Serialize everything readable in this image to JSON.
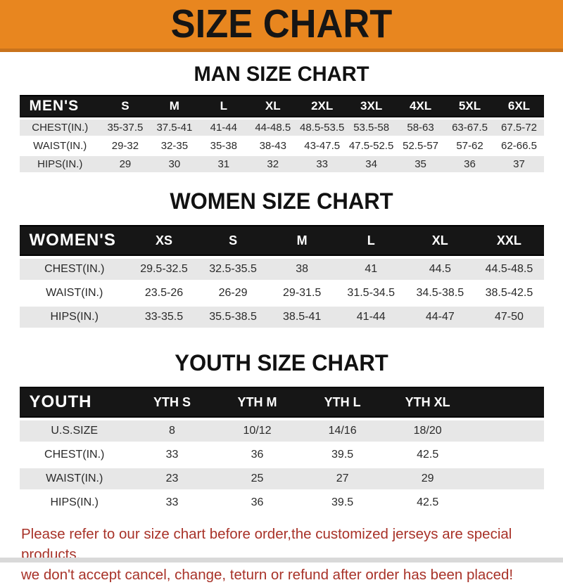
{
  "banner": {
    "title": "SIZE CHART"
  },
  "colors": {
    "banner_orange": "#E8861F",
    "banner_border": "#C9731C",
    "header_bar_black": "#161616",
    "row_stripe_gray": "#E7E7E7",
    "footer_red": "#A83228"
  },
  "sections": [
    {
      "key": "men",
      "heading": "MAN SIZE CHART",
      "table": {
        "label": "MEN'S",
        "columns": [
          "S",
          "M",
          "L",
          "XL",
          "2XL",
          "3XL",
          "4XL",
          "5XL",
          "6XL"
        ],
        "rows": [
          {
            "label": "CHEST(IN.)",
            "values": [
              "35-37.5",
              "37.5-41",
              "41-44",
              "44-48.5",
              "48.5-53.5",
              "53.5-58",
              "58-63",
              "63-67.5",
              "67.5-72"
            ]
          },
          {
            "label": "WAIST(IN.)",
            "values": [
              "29-32",
              "32-35",
              "35-38",
              "38-43",
              "43-47.5",
              "47.5-52.5",
              "52.5-57",
              "57-62",
              "62-66.5"
            ]
          },
          {
            "label": "HIPS(IN.)",
            "values": [
              "29",
              "30",
              "31",
              "32",
              "33",
              "34",
              "35",
              "36",
              "37"
            ]
          }
        ]
      }
    },
    {
      "key": "women",
      "heading": "WOMEN SIZE CHART",
      "table": {
        "label": "WOMEN'S",
        "columns": [
          "XS",
          "S",
          "M",
          "L",
          "XL",
          "XXL"
        ],
        "rows": [
          {
            "label": "CHEST(IN.)",
            "values": [
              "29.5-32.5",
              "32.5-35.5",
              "38",
              "41",
              "44.5",
              "44.5-48.5"
            ]
          },
          {
            "label": "WAIST(IN.)",
            "values": [
              "23.5-26",
              "26-29",
              "29-31.5",
              "31.5-34.5",
              "34.5-38.5",
              "38.5-42.5"
            ]
          },
          {
            "label": "HIPS(IN.)",
            "values": [
              "33-35.5",
              "35.5-38.5",
              "38.5-41",
              "41-44",
              "44-47",
              "47-50"
            ]
          }
        ]
      }
    },
    {
      "key": "youth",
      "heading": "YOUTH SIZE CHART",
      "table": {
        "label": "YOUTH",
        "columns": [
          "YTH S",
          "YTH M",
          "YTH L",
          "YTH XL"
        ],
        "rows": [
          {
            "label": "U.S.SIZE",
            "values": [
              "8",
              "10/12",
              "14/16",
              "18/20"
            ]
          },
          {
            "label": "CHEST(IN.)",
            "values": [
              "33",
              "36",
              "39.5",
              "42.5"
            ]
          },
          {
            "label": "WAIST(IN.)",
            "values": [
              "23",
              "25",
              "27",
              "29"
            ]
          },
          {
            "label": "HIPS(IN.)",
            "values": [
              "33",
              "36",
              "39.5",
              "42.5"
            ]
          }
        ]
      }
    }
  ],
  "footer": {
    "line1": "Please refer to our size chart before order,the customized jerseys are special products,",
    "line2": "we don't accept cancel, change, teturn or refund after order has been placed!"
  }
}
